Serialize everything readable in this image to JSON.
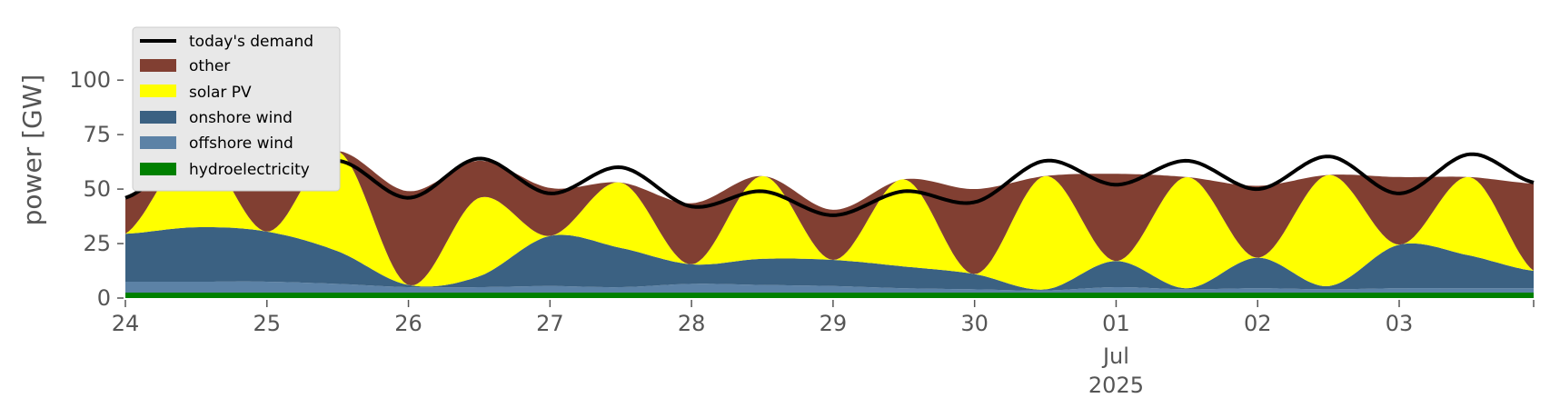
{
  "chart_data": {
    "type": "area",
    "title": "",
    "xlabel": "",
    "ylabel": "power [GW]",
    "ylim": [
      0,
      118
    ],
    "xlim": [
      0,
      9.95
    ],
    "x_unit": "days from 24 Jun 2025 00:00",
    "grid": false,
    "legend_position": "top-left",
    "y_ticks": [
      {
        "value": 0,
        "label": "0"
      },
      {
        "value": 25,
        "label": "25"
      },
      {
        "value": 50,
        "label": "50"
      },
      {
        "value": 75,
        "label": "75"
      },
      {
        "value": 100,
        "label": "100"
      }
    ],
    "x_ticks": [
      {
        "value": 0,
        "label": "24"
      },
      {
        "value": 1,
        "label": "25"
      },
      {
        "value": 2,
        "label": "26"
      },
      {
        "value": 3,
        "label": "27"
      },
      {
        "value": 4,
        "label": "28"
      },
      {
        "value": 5,
        "label": "29"
      },
      {
        "value": 6,
        "label": "30"
      },
      {
        "value": 7,
        "label": "01"
      },
      {
        "value": 8,
        "label": "02"
      },
      {
        "value": 9,
        "label": "03"
      }
    ],
    "x_sublabels": {
      "at": 7,
      "month": "Jul",
      "year": "2025"
    },
    "x": [
      0,
      0.5,
      1,
      1.5,
      2,
      2.5,
      3,
      3.5,
      4,
      4.5,
      5,
      5.5,
      6,
      6.5,
      7,
      7.5,
      8,
      8.5,
      9,
      9.5,
      9.95
    ],
    "stack_order": [
      "hydroelectricity",
      "offshore wind",
      "onshore wind",
      "solar PV",
      "other"
    ],
    "series": [
      {
        "name": "hydroelectricity",
        "color": "#008000",
        "values": [
          2.5,
          2.5,
          2.5,
          2.5,
          2.5,
          2.5,
          2.5,
          2.5,
          2.5,
          2.5,
          2.5,
          2.5,
          2.5,
          2.5,
          2.5,
          2.5,
          2.5,
          2.5,
          2.5,
          2.5,
          2.5
        ]
      },
      {
        "name": "offshore wind",
        "color": "#5c82a6",
        "values": [
          5,
          5,
          5,
          4,
          2.5,
          2.5,
          3,
          2.5,
          4,
          3.5,
          3,
          2,
          1.5,
          1,
          2.5,
          1.5,
          2,
          1.5,
          2,
          2,
          2
        ]
      },
      {
        "name": "onshore wind",
        "color": "#3b6182",
        "values": [
          22,
          25,
          23,
          15,
          1,
          5,
          23,
          18,
          9,
          12,
          12,
          10,
          7,
          0.5,
          12,
          0.5,
          14,
          1.5,
          20,
          15,
          8
        ]
      },
      {
        "name": "solar PV",
        "color": "#ffff00",
        "values": [
          0,
          37,
          0,
          46,
          0,
          36,
          0,
          30,
          0,
          38,
          0,
          40,
          0,
          52,
          0,
          51,
          0,
          51,
          0,
          36,
          0
        ]
      },
      {
        "name": "other",
        "color": "#813f32",
        "values": [
          16,
          0,
          24,
          0,
          43,
          17,
          22,
          0,
          28,
          0,
          23,
          0,
          39,
          0,
          40,
          0,
          33,
          0,
          31,
          0,
          40
        ]
      }
    ],
    "demand": {
      "name": "today's demand",
      "color": "#000000",
      "values": [
        46,
        66,
        50,
        63,
        46,
        64,
        48,
        60,
        42,
        49,
        38,
        49,
        44,
        63,
        52,
        63,
        50,
        65,
        48,
        66,
        53
      ]
    }
  }
}
